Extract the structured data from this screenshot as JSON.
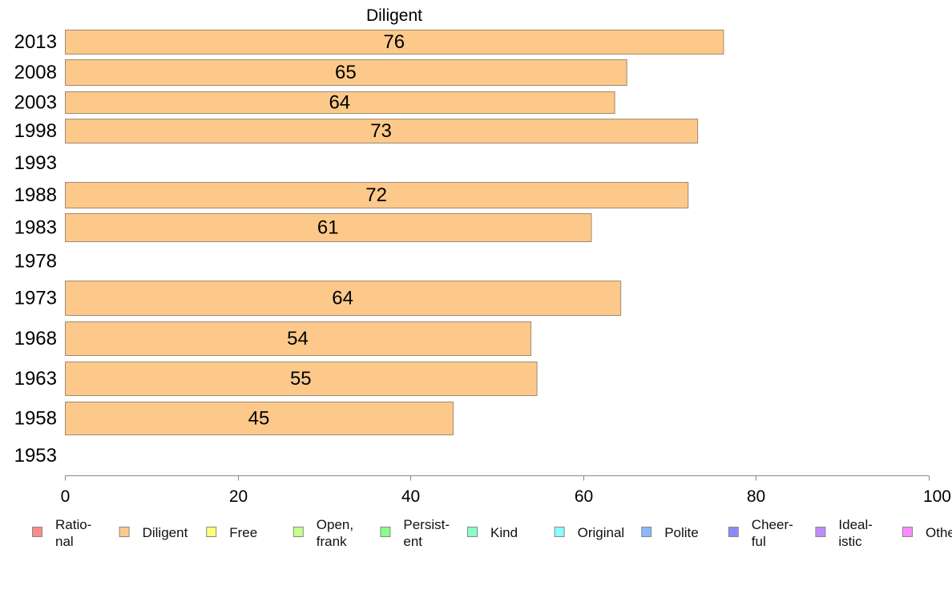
{
  "chart_data": {
    "type": "bar",
    "orientation": "horizontal",
    "title": "Diligent",
    "xlim": [
      0,
      100
    ],
    "x_ticks": [
      "0",
      "20",
      "40",
      "60",
      "80",
      "100"
    ],
    "grid": false,
    "bar_color": "#fdc98a",
    "bar_edge_color": "#a08a72",
    "categories": [
      "2013",
      "2008",
      "2003",
      "1998",
      "1993",
      "1988",
      "1983",
      "1978",
      "1973",
      "1968",
      "1963",
      "1958",
      "1953"
    ],
    "values": [
      76,
      65,
      64,
      73,
      null,
      72,
      61,
      null,
      64,
      54,
      55,
      45,
      null
    ],
    "precise_values": [
      76.2,
      65.0,
      63.6,
      73.2,
      null,
      72.1,
      60.9,
      null,
      64.3,
      53.9,
      54.6,
      44.9,
      null
    ],
    "legend": {
      "placement": "bottom",
      "items": [
        {
          "label": "Ratio-\nnal",
          "color": "#ff8a8a"
        },
        {
          "label": "Diligent",
          "color": "#fdc98a"
        },
        {
          "label": "Free",
          "color": "#ffff7a"
        },
        {
          "label": "Open,\nfrank",
          "color": "#c8ff8a"
        },
        {
          "label": "Persist-\nent",
          "color": "#8aff8a"
        },
        {
          "label": "Kind",
          "color": "#8affc8"
        },
        {
          "label": "Original",
          "color": "#8affff"
        },
        {
          "label": "Polite",
          "color": "#8ab8ff"
        },
        {
          "label": "Cheer-\nful",
          "color": "#8a8aff"
        },
        {
          "label": "Ideal-\nistic",
          "color": "#c08aff"
        },
        {
          "label": "Other",
          "color": "#ff8aff"
        }
      ]
    }
  }
}
